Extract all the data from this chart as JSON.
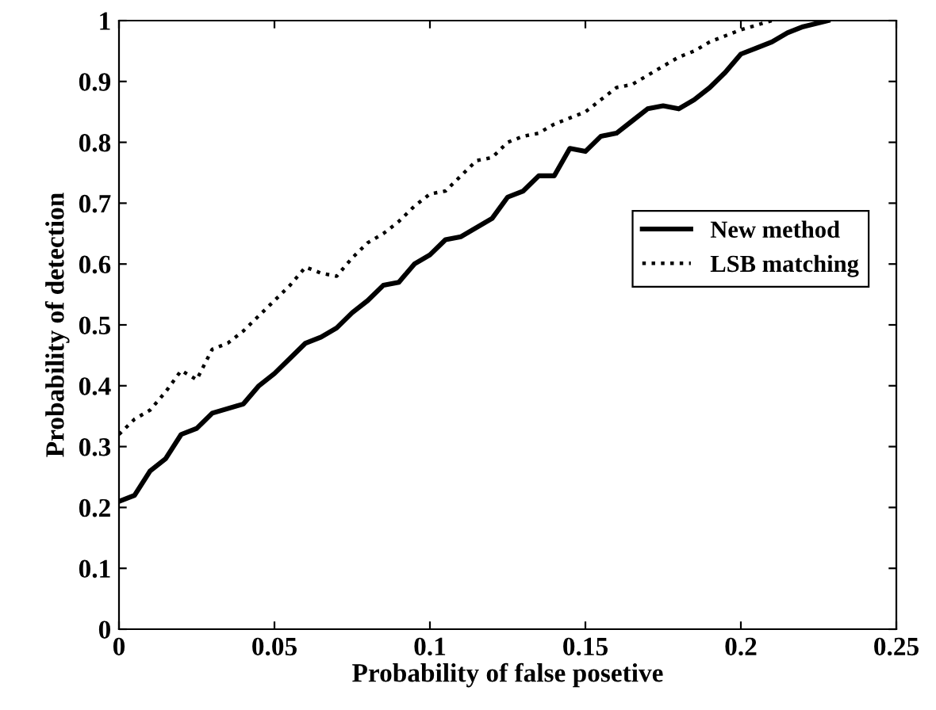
{
  "chart_data": {
    "type": "line",
    "xlabel": "Probability of false posetive",
    "ylabel": "Probability of detection",
    "xlim": [
      0,
      0.25
    ],
    "ylim": [
      0,
      1
    ],
    "xticks": [
      0,
      0.05,
      0.1,
      0.15,
      0.2,
      0.25
    ],
    "yticks": [
      0,
      0.1,
      0.2,
      0.3,
      0.4,
      0.5,
      0.6,
      0.7,
      0.8,
      0.9,
      1
    ],
    "grid": false,
    "legend": "right",
    "marker": "none",
    "series": [
      {
        "name": "New method",
        "color": "#000000",
        "line_style": "solid",
        "x": [
          0,
          0.005,
          0.01,
          0.015,
          0.02,
          0.025,
          0.03,
          0.04,
          0.045,
          0.05,
          0.055,
          0.06,
          0.065,
          0.07,
          0.075,
          0.08,
          0.085,
          0.09,
          0.095,
          0.1,
          0.105,
          0.11,
          0.115,
          0.12,
          0.125,
          0.13,
          0.135,
          0.14,
          0.145,
          0.15,
          0.155,
          0.16,
          0.165,
          0.17,
          0.175,
          0.18,
          0.185,
          0.19,
          0.195,
          0.2,
          0.205,
          0.21,
          0.215,
          0.22,
          0.228
        ],
        "values": [
          0.21,
          0.22,
          0.26,
          0.28,
          0.32,
          0.33,
          0.355,
          0.37,
          0.4,
          0.42,
          0.445,
          0.47,
          0.48,
          0.495,
          0.52,
          0.54,
          0.565,
          0.57,
          0.6,
          0.615,
          0.64,
          0.645,
          0.66,
          0.675,
          0.71,
          0.72,
          0.745,
          0.745,
          0.79,
          0.785,
          0.81,
          0.815,
          0.835,
          0.855,
          0.86,
          0.855,
          0.87,
          0.89,
          0.915,
          0.945,
          0.955,
          0.965,
          0.98,
          0.99,
          1.0
        ]
      },
      {
        "name": "LSB matching",
        "color": "#000000",
        "line_style": "dotted",
        "x": [
          0,
          0.005,
          0.01,
          0.015,
          0.02,
          0.025,
          0.03,
          0.035,
          0.04,
          0.045,
          0.05,
          0.055,
          0.06,
          0.065,
          0.07,
          0.075,
          0.08,
          0.085,
          0.09,
          0.095,
          0.1,
          0.105,
          0.11,
          0.115,
          0.12,
          0.125,
          0.13,
          0.135,
          0.14,
          0.145,
          0.15,
          0.155,
          0.16,
          0.165,
          0.17,
          0.175,
          0.18,
          0.185,
          0.19,
          0.195,
          0.2,
          0.21
        ],
        "values": [
          0.32,
          0.345,
          0.36,
          0.39,
          0.425,
          0.41,
          0.46,
          0.47,
          0.49,
          0.515,
          0.54,
          0.565,
          0.595,
          0.585,
          0.58,
          0.61,
          0.635,
          0.65,
          0.67,
          0.695,
          0.715,
          0.72,
          0.745,
          0.77,
          0.775,
          0.8,
          0.81,
          0.815,
          0.83,
          0.84,
          0.85,
          0.87,
          0.89,
          0.895,
          0.91,
          0.925,
          0.94,
          0.95,
          0.965,
          0.975,
          0.985,
          1.0
        ]
      }
    ]
  }
}
